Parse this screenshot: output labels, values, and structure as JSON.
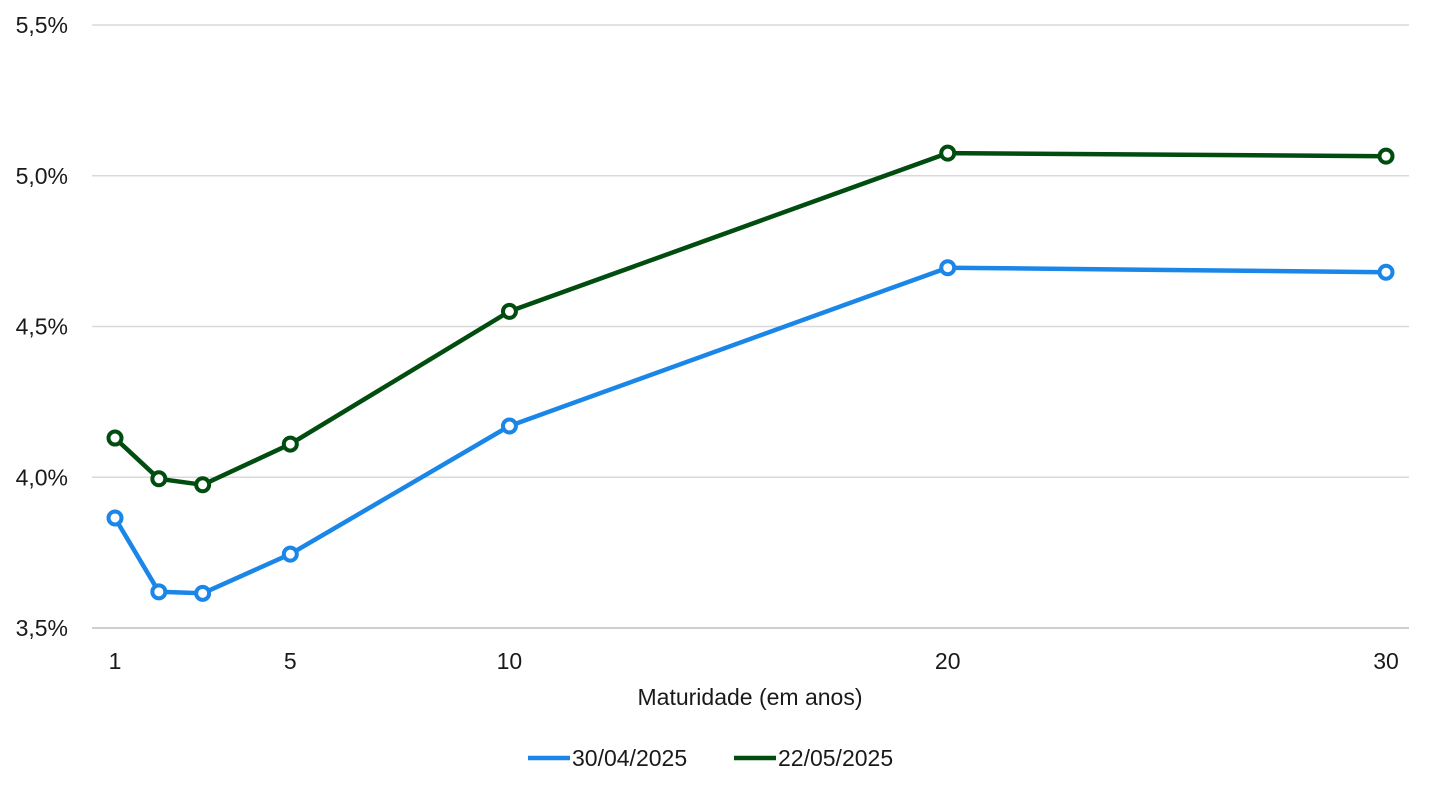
{
  "chart_data": {
    "type": "line",
    "title": "",
    "xlabel": "Maturidade (em anos)",
    "ylabel": "",
    "x": [
      1,
      2,
      3,
      5,
      10,
      20,
      30
    ],
    "x_ticks": [
      1,
      5,
      10,
      20,
      30
    ],
    "x_tick_labels": [
      "1",
      "5",
      "10",
      "20",
      "30"
    ],
    "xlim": [
      1,
      30
    ],
    "ylim": [
      3.5,
      5.5
    ],
    "y_ticks": [
      3.5,
      4.0,
      4.5,
      5.0,
      5.5
    ],
    "y_tick_labels": [
      "3,5%",
      "4,0%",
      "4,5%",
      "5,0%",
      "5,5%"
    ],
    "grid": true,
    "legend_position": "bottom-center",
    "series": [
      {
        "name": "30/04/2025",
        "color": "#1a86e8",
        "values": [
          3.865,
          3.62,
          3.615,
          3.745,
          4.17,
          4.695,
          4.68
        ]
      },
      {
        "name": "22/05/2025",
        "color": "#004d0f",
        "values": [
          4.13,
          3.995,
          3.975,
          4.11,
          4.55,
          5.075,
          5.065
        ]
      }
    ]
  }
}
